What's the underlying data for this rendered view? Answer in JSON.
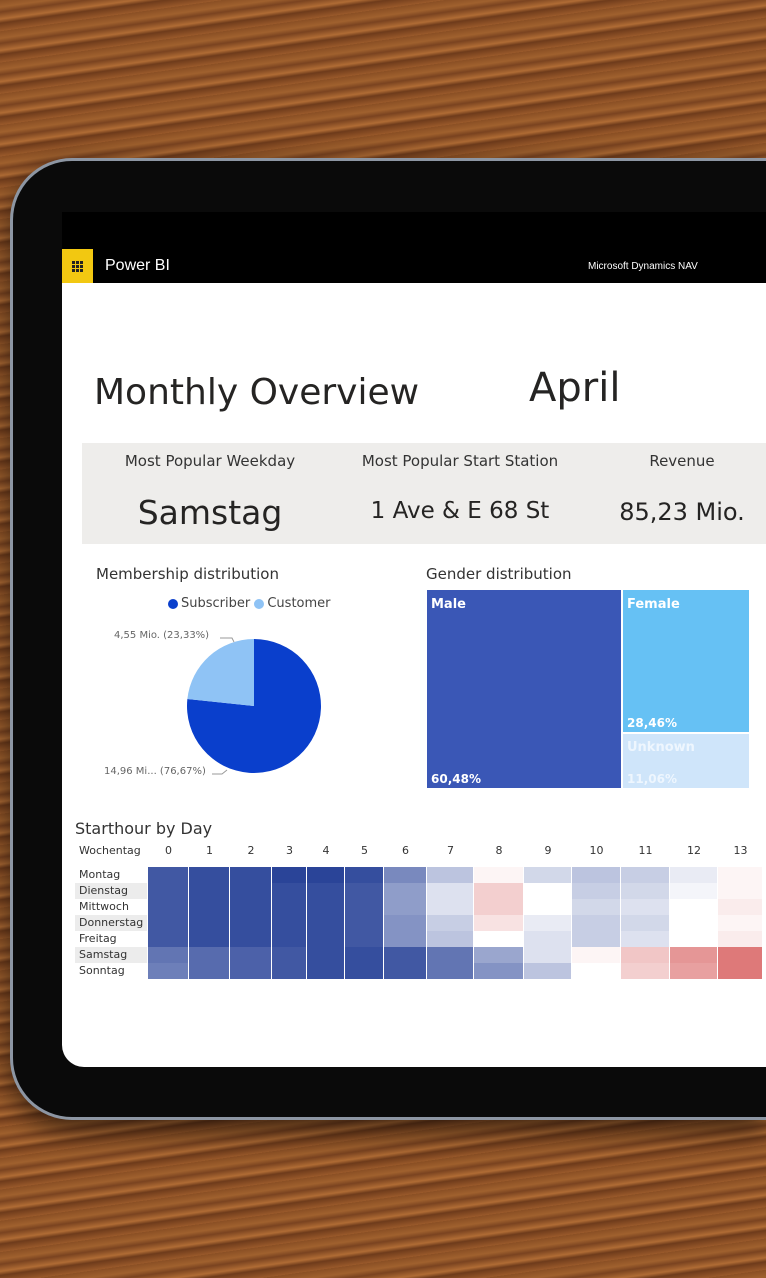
{
  "app": {
    "name": "Power BI",
    "org": "Microsoft Dynamics NAV",
    "icon": "app-launcher-grid-icon"
  },
  "report": {
    "title": "Monthly Overview",
    "month": "April"
  },
  "kpis": [
    {
      "label": "Most Popular Weekday",
      "value": "Samstag"
    },
    {
      "label": "Most Popular Start Station",
      "value": "1 Ave & E 68 St"
    },
    {
      "label": "Revenue",
      "value": "85,23 Mio."
    }
  ],
  "colors": {
    "subscriber": "#0a3fcc",
    "customer": "#8fc3f5",
    "male": "#3a57b6",
    "female": "#66c1f4",
    "unknown": "#cfe5fa",
    "accent": "#f2c811"
  },
  "chart_data": [
    {
      "type": "pie",
      "title": "Membership distribution",
      "legend_position": "top",
      "slices": [
        {
          "name": "Subscriber",
          "value": 14.96,
          "percent": 76.67,
          "label": "14,96 Mi... (76,67%)"
        },
        {
          "name": "Customer",
          "value": 4.55,
          "percent": 23.33,
          "label": "4,55 Mio. (23,33%)"
        }
      ]
    },
    {
      "type": "treemap",
      "title": "Gender distribution",
      "items": [
        {
          "name": "Male",
          "percent": 60.48,
          "label": "60,48%"
        },
        {
          "name": "Female",
          "percent": 28.46,
          "label": "28,46%"
        },
        {
          "name": "Unknown",
          "percent": 11.06,
          "label": "11,06%"
        }
      ]
    },
    {
      "type": "heatmap",
      "title": "Starthour by Day",
      "row_header": "Wochentag",
      "columns": [
        "0",
        "1",
        "2",
        "3",
        "4",
        "5",
        "6",
        "7",
        "8",
        "9",
        "10",
        "11",
        "12",
        "13"
      ],
      "rows": [
        "Montag",
        "Dienstag",
        "Mittwoch",
        "Donnerstag",
        "Freitag",
        "Samstag",
        "Sonntag"
      ],
      "scale_note": "values relative, -1 = dark blue, +1 = red",
      "values": [
        [
          -0.85,
          -0.9,
          -0.9,
          -0.95,
          -0.95,
          -0.9,
          -0.6,
          -0.3,
          0.05,
          -0.2,
          -0.3,
          -0.25,
          -0.1,
          0.05
        ],
        [
          -0.85,
          -0.9,
          -0.9,
          -0.9,
          -0.9,
          -0.85,
          -0.5,
          -0.15,
          0.25,
          0,
          -0.25,
          -0.2,
          -0.05,
          0.05
        ],
        [
          -0.85,
          -0.9,
          -0.9,
          -0.9,
          -0.9,
          -0.85,
          -0.5,
          -0.15,
          0.25,
          0,
          -0.2,
          -0.15,
          0,
          0.1
        ],
        [
          -0.85,
          -0.9,
          -0.9,
          -0.9,
          -0.9,
          -0.85,
          -0.55,
          -0.25,
          0.15,
          -0.1,
          -0.25,
          -0.2,
          0,
          0.05
        ],
        [
          -0.85,
          -0.9,
          -0.9,
          -0.9,
          -0.9,
          -0.85,
          -0.55,
          -0.3,
          0,
          -0.15,
          -0.25,
          -0.15,
          0,
          0.1
        ],
        [
          -0.7,
          -0.75,
          -0.8,
          -0.85,
          -0.9,
          -0.9,
          -0.85,
          -0.7,
          -0.45,
          -0.15,
          0.05,
          0.3,
          0.55,
          0.7
        ],
        [
          -0.65,
          -0.75,
          -0.8,
          -0.85,
          -0.9,
          -0.9,
          -0.85,
          -0.7,
          -0.55,
          -0.3,
          0,
          0.25,
          0.5,
          0.7
        ]
      ]
    }
  ]
}
